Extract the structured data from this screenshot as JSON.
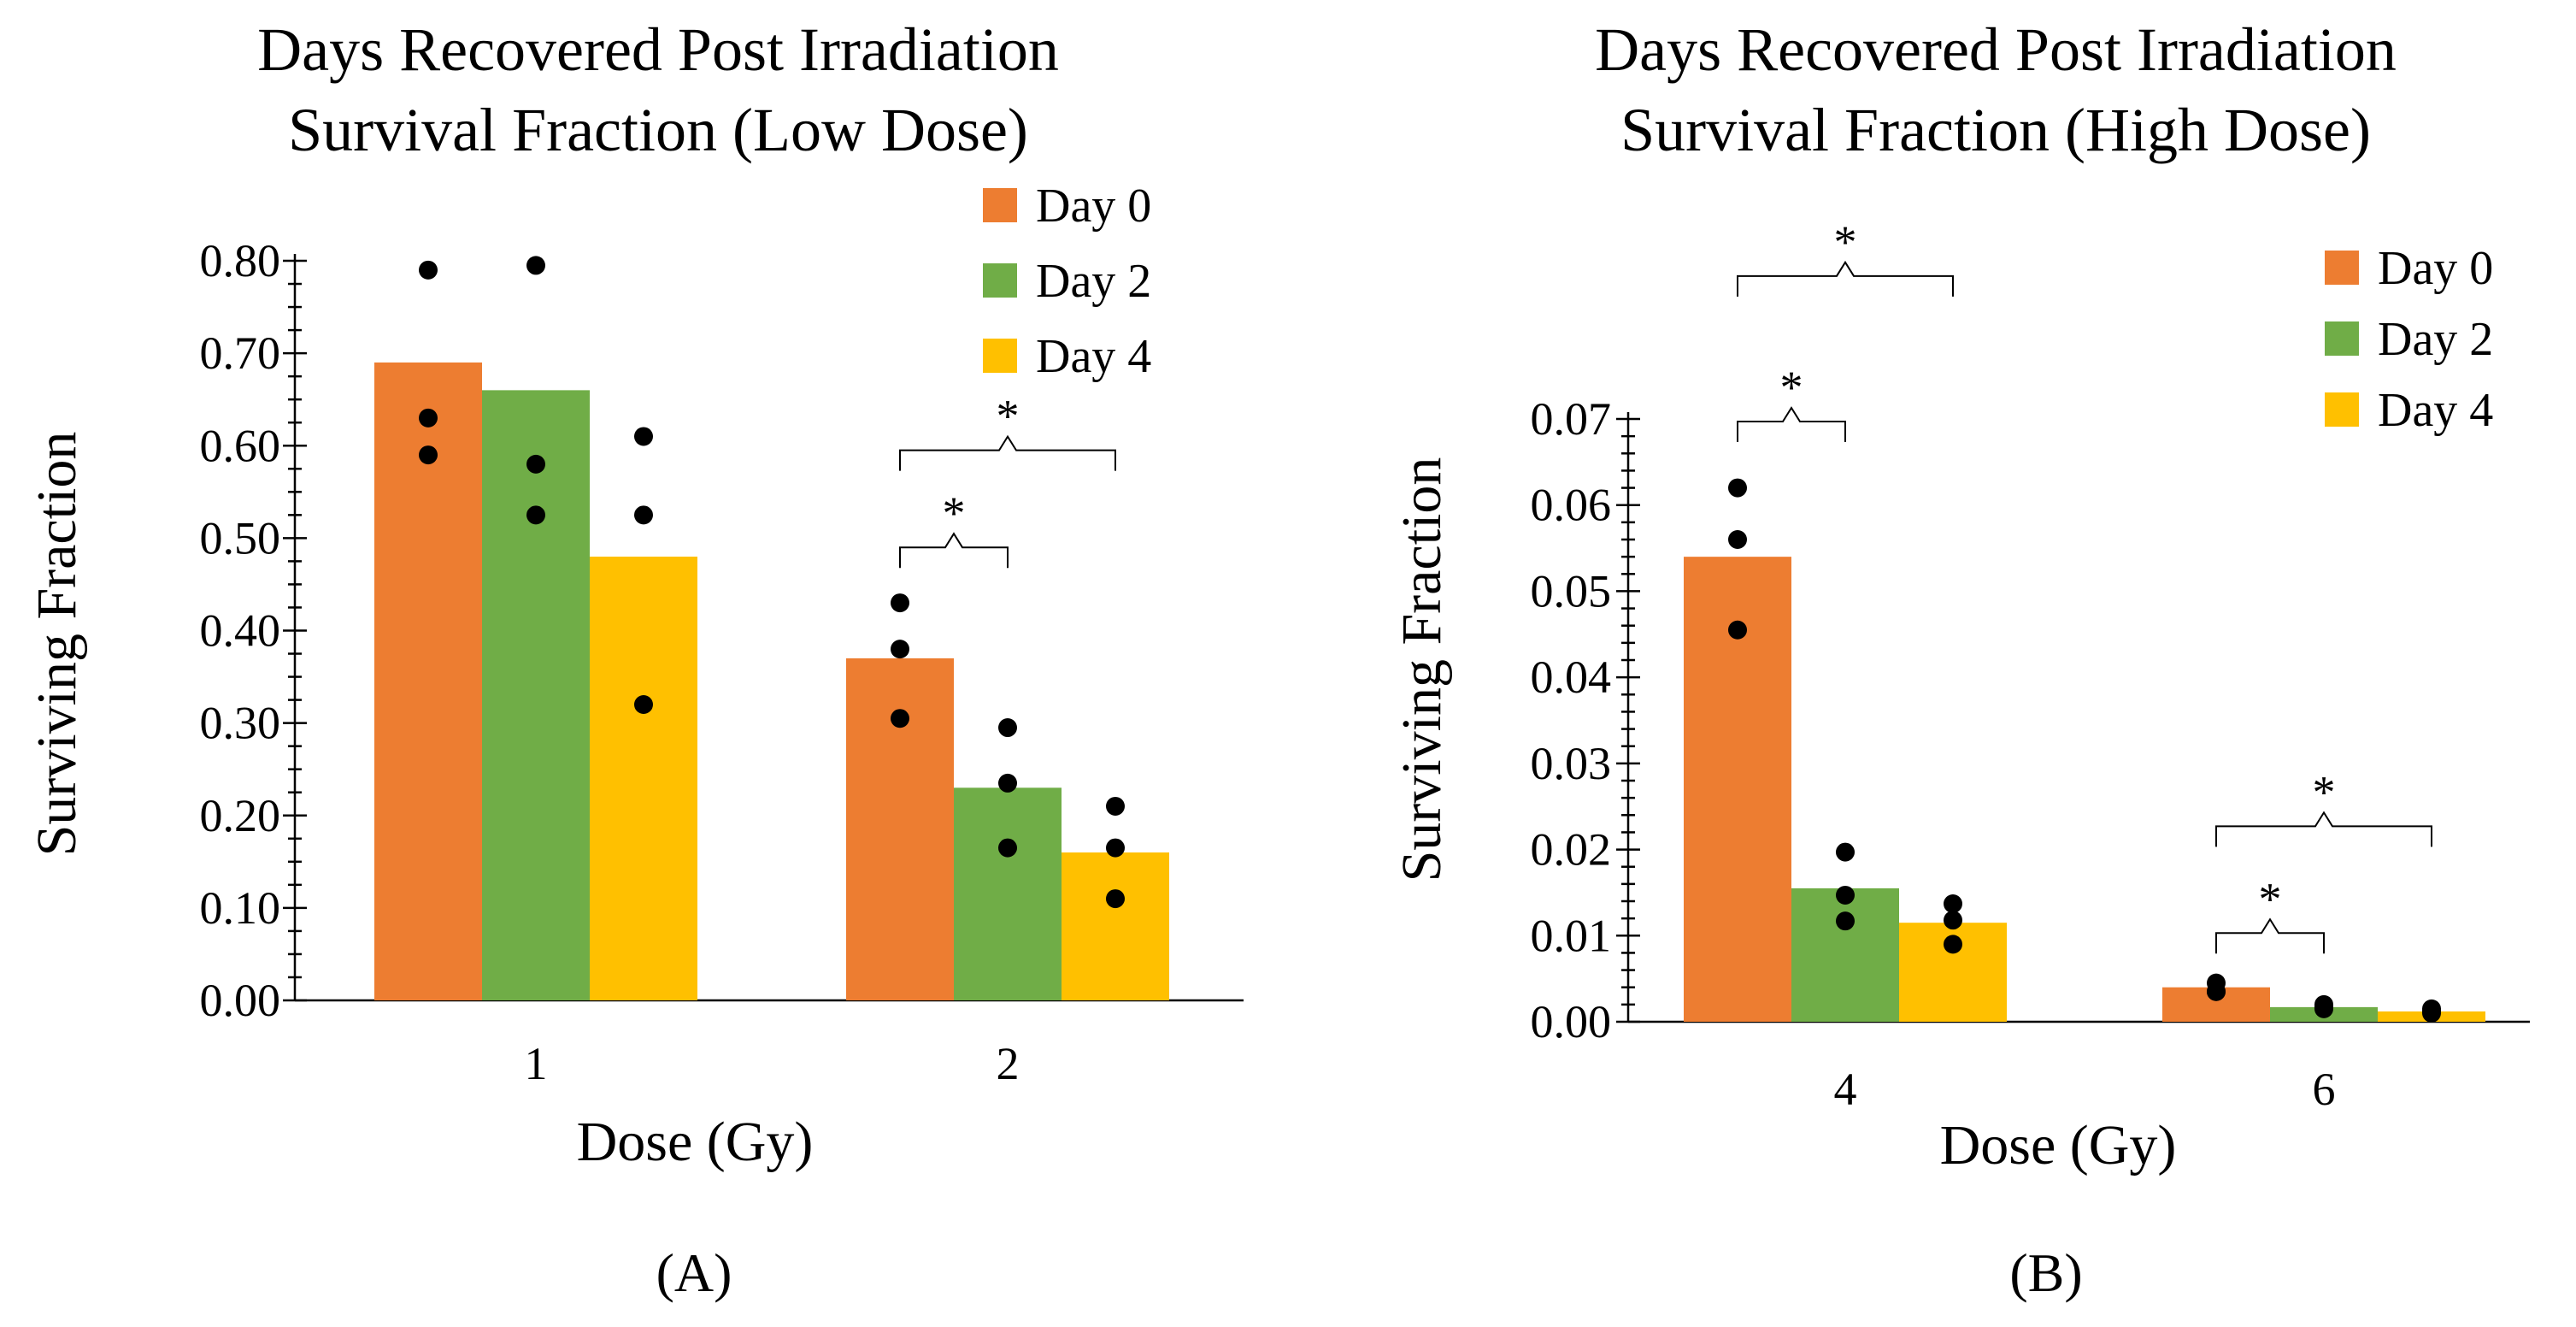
{
  "chart_data": [
    {
      "type": "bar",
      "title_lines": [
        "Days Recovered Post Irradiation",
        "Survival Fraction (Low Dose)"
      ],
      "xlabel": "Dose (Gy)",
      "ylabel": "Surviving Fraction",
      "categories": [
        "1",
        "2"
      ],
      "ylim": [
        0,
        0.8
      ],
      "yticks": [
        "0.00",
        "0.10",
        "0.20",
        "0.30",
        "0.40",
        "0.50",
        "0.60",
        "0.70",
        "0.80"
      ],
      "series": [
        {
          "name": "Day 0",
          "color": "#ed7d31",
          "values": [
            0.69,
            0.37
          ],
          "points": [
            [
              0.79,
              0.63,
              0.59
            ],
            [
              0.43,
              0.38,
              0.305
            ]
          ]
        },
        {
          "name": "Day 2",
          "color": "#70ad47",
          "values": [
            0.66,
            0.23
          ],
          "points": [
            [
              0.795,
              0.58,
              0.525
            ],
            [
              0.295,
              0.235,
              0.165
            ]
          ]
        },
        {
          "name": "Day 4",
          "color": "#ffc000",
          "values": [
            0.48,
            0.16
          ],
          "points": [
            [
              0.61,
              0.525,
              0.32
            ],
            [
              0.21,
              0.165,
              0.11
            ]
          ]
        }
      ],
      "significance": [
        {
          "group": 1,
          "from": 0,
          "to": 1,
          "label": "*",
          "level": 0.49
        },
        {
          "group": 1,
          "from": 0,
          "to": 2,
          "label": "*",
          "level": 0.595
        }
      ],
      "legend": [
        "Day 0",
        "Day 2",
        "Day 4"
      ],
      "panel_label": "(A)"
    },
    {
      "type": "bar",
      "title_lines": [
        "Days Recovered Post Irradiation",
        "Survival Fraction (High Dose)"
      ],
      "xlabel": "Dose (Gy)",
      "ylabel": "Surviving Fraction",
      "categories": [
        "4",
        "6"
      ],
      "ylim": [
        0,
        0.07
      ],
      "yticks": [
        "0.00",
        "0.01",
        "0.02",
        "0.03",
        "0.04",
        "0.05",
        "0.06",
        "0.07"
      ],
      "series": [
        {
          "name": "Day 0",
          "color": "#ed7d31",
          "values": [
            0.054,
            0.004
          ],
          "points": [
            [
              0.062,
              0.056,
              0.0455
            ],
            [
              0.0045,
              0.0035,
              0.0035
            ]
          ]
        },
        {
          "name": "Day 2",
          "color": "#70ad47",
          "values": [
            0.0155,
            0.0017
          ],
          "points": [
            [
              0.0197,
              0.0147,
              0.0117
            ],
            [
              0.002,
              0.0017,
              0.0015
            ]
          ]
        },
        {
          "name": "Day 4",
          "color": "#ffc000",
          "values": [
            0.0115,
            0.0012
          ],
          "points": [
            [
              0.0137,
              0.0118,
              0.009
            ],
            [
              0.0015,
              0.0012,
              0.001
            ]
          ]
        }
      ],
      "significance": [
        {
          "group": 0,
          "from": 0,
          "to": 1,
          "label": "*",
          "level": 0.0697
        },
        {
          "group": 0,
          "from": 0,
          "to": 2,
          "label": "*",
          "level": 0.0866
        },
        {
          "group": 1,
          "from": 0,
          "to": 1,
          "label": "*",
          "level": 0.0103
        },
        {
          "group": 1,
          "from": 0,
          "to": 2,
          "label": "*",
          "level": 0.0227
        }
      ],
      "legend": [
        "Day 0",
        "Day 2",
        "Day 4"
      ],
      "panel_label": "(B)"
    }
  ]
}
